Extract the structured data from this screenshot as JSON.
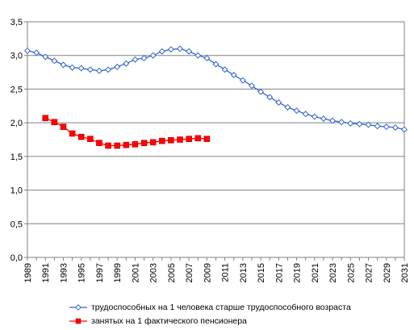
{
  "chart_data": {
    "type": "line",
    "title": "",
    "xlabel": "",
    "ylabel": "",
    "ylim": [
      0,
      3.5
    ],
    "yticks": [
      "0,0",
      "0,5",
      "1,0",
      "1,5",
      "2,0",
      "2,5",
      "3,0",
      "3,5"
    ],
    "xticks": [
      "1989",
      "1991",
      "1993",
      "1995",
      "1997",
      "1999",
      "2001",
      "2003",
      "2005",
      "2007",
      "2009",
      "2011",
      "2013",
      "2015",
      "2017",
      "2019",
      "2021",
      "2023",
      "2025",
      "2027",
      "2029",
      "2031"
    ],
    "grid": "horizontal",
    "legend_position": "bottom",
    "series": [
      {
        "name": "трудоспособных на 1 человека старше трудоспособного возраста",
        "color": "#3366cc",
        "marker": "diamond",
        "x": [
          1989,
          1990,
          1991,
          1992,
          1993,
          1994,
          1995,
          1996,
          1997,
          1998,
          1999,
          2000,
          2001,
          2002,
          2003,
          2004,
          2005,
          2006,
          2007,
          2008,
          2009,
          2010,
          2011,
          2012,
          2013,
          2014,
          2015,
          2016,
          2017,
          2018,
          2019,
          2020,
          2021,
          2022,
          2023,
          2024,
          2025,
          2026,
          2027,
          2028,
          2029,
          2030,
          2031
        ],
        "values": [
          3.07,
          3.04,
          2.98,
          2.92,
          2.86,
          2.82,
          2.81,
          2.79,
          2.77,
          2.79,
          2.83,
          2.88,
          2.94,
          2.96,
          3.0,
          3.06,
          3.09,
          3.1,
          3.06,
          3.0,
          2.96,
          2.87,
          2.79,
          2.71,
          2.63,
          2.55,
          2.46,
          2.38,
          2.3,
          2.23,
          2.18,
          2.13,
          2.09,
          2.06,
          2.03,
          2.01,
          1.99,
          1.98,
          1.97,
          1.95,
          1.94,
          1.93,
          1.9
        ]
      },
      {
        "name": "занятых на 1 фактического пенсионера",
        "color": "#ff0000",
        "marker": "square",
        "x": [
          1991,
          1992,
          1993,
          1994,
          1995,
          1996,
          1997,
          1998,
          1999,
          2000,
          2001,
          2002,
          2003,
          2004,
          2005,
          2006,
          2007,
          2008,
          2009
        ],
        "values": [
          2.07,
          2.01,
          1.94,
          1.84,
          1.79,
          1.76,
          1.7,
          1.66,
          1.66,
          1.67,
          1.68,
          1.7,
          1.71,
          1.73,
          1.74,
          1.75,
          1.76,
          1.77,
          1.76
        ]
      }
    ]
  }
}
